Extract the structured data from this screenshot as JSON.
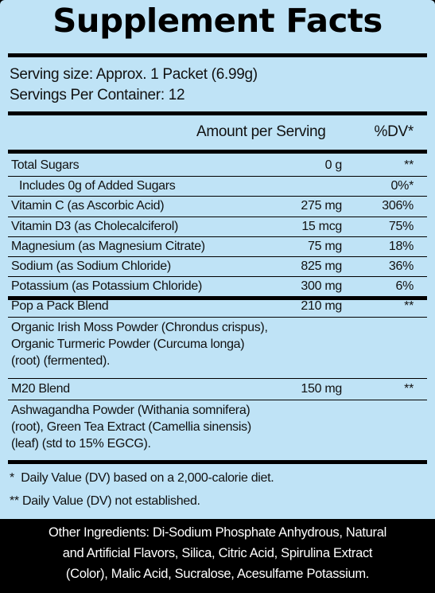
{
  "title": "Supplement Facts",
  "serving_size": "Serving size: Approx. 1 Packet (6.99g)",
  "servings_per_container": "Servings Per Container: 12",
  "header": {
    "amount": "Amount per Serving",
    "dv": "%DV*"
  },
  "rows": [
    {
      "name": "Total Sugars",
      "amount": "0 g",
      "dv": "**"
    },
    {
      "name": "Includes 0g of Added Sugars",
      "amount": "",
      "dv": "0%*"
    },
    {
      "name": "Vitamin C (as Ascorbic Acid)",
      "amount": "275 mg",
      "dv": "306%"
    },
    {
      "name": "Vitamin D3 (as Cholecalciferol)",
      "amount": "15 mcg",
      "dv": "75%"
    },
    {
      "name": "Magnesium (as Magnesium Citrate)",
      "amount": "75 mg",
      "dv": "18%"
    },
    {
      "name": "Sodium (as Sodium Chloride)",
      "amount": "825 mg",
      "dv": "36%"
    },
    {
      "name": "Potassium (as Potassium Chloride)",
      "amount": "300 mg",
      "dv": "6%"
    }
  ],
  "blends": [
    {
      "name": "Pop a Pack Blend",
      "amount": "210 mg",
      "dv": "**",
      "lines": [
        "Organic Irish Moss Powder (Chrondus crispus),",
        "Organic Turmeric Powder (Curcuma longa)",
        "(root) (fermented)."
      ]
    },
    {
      "name": "M20 Blend",
      "amount": "150 mg",
      "dv": "**",
      "lines": [
        "Ashwagandha Powder (Withania somnifera)",
        "(root), Green Tea Extract (Camellia sinensis)",
        "(leaf) (std to 15% EGCG)."
      ]
    }
  ],
  "footnotes": [
    "*  Daily Value (DV) based on a 2,000-calorie diet.",
    "** Daily Value (DV) not established."
  ],
  "other_ingredients": [
    "Other Ingredients: Di-Sodium Phosphate Anhydrous, Natural",
    "and Artificial Flavors, Silica, Citric Acid, Spirulina Extract",
    "(Color), Malic Acid, Sucralose, Acesulfame Potassium."
  ],
  "colors": {
    "panel_background": "#bfe3f6",
    "outer_background": "#000000",
    "text": "#111111",
    "other_ingredients_text": "#ffffff"
  }
}
